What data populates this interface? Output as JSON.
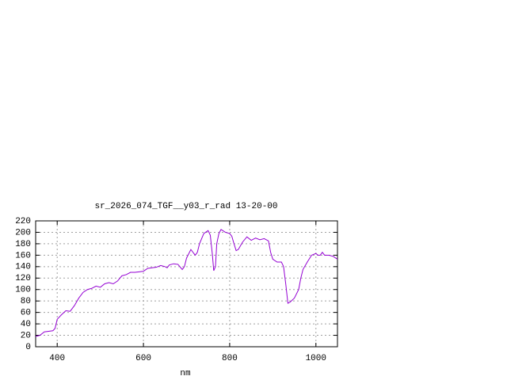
{
  "chart_data": {
    "type": "line",
    "title": "sr_2026_074_TGF__y03_r_rad 13-20-00",
    "x_label": "nm",
    "x": [
      350,
      360,
      370,
      380,
      390,
      395,
      400,
      410,
      420,
      430,
      440,
      450,
      460,
      470,
      480,
      490,
      500,
      510,
      520,
      530,
      540,
      550,
      560,
      570,
      580,
      590,
      600,
      610,
      620,
      630,
      640,
      650,
      655,
      660,
      670,
      680,
      690,
      695,
      700,
      710,
      715,
      720,
      725,
      730,
      740,
      750,
      755,
      760,
      763,
      767,
      770,
      775,
      780,
      790,
      800,
      805,
      810,
      815,
      820,
      830,
      840,
      850,
      860,
      870,
      880,
      890,
      895,
      900,
      910,
      920,
      925,
      930,
      935,
      940,
      950,
      960,
      965,
      970,
      980,
      990,
      1000,
      1005,
      1010,
      1015,
      1020,
      1030,
      1040,
      1050
    ],
    "series": [
      {
        "name": null,
        "color": "#9400d3",
        "values": [
          18,
          20,
          26,
          27,
          28,
          32,
          48,
          56,
          63,
          62,
          72,
          85,
          95,
          100,
          102,
          106,
          104,
          110,
          112,
          110,
          115,
          124,
          126,
          130,
          130,
          131,
          132,
          137,
          138,
          139,
          142,
          140,
          138,
          143,
          145,
          144,
          135,
          140,
          155,
          170,
          165,
          160,
          165,
          180,
          198,
          203,
          195,
          160,
          133,
          140,
          180,
          198,
          205,
          200,
          198,
          193,
          180,
          168,
          170,
          183,
          192,
          186,
          190,
          187,
          189,
          185,
          165,
          153,
          148,
          148,
          140,
          110,
          76,
          78,
          85,
          100,
          120,
          135,
          148,
          160,
          163,
          160,
          160,
          165,
          160,
          160,
          158,
          153
        ]
      }
    ],
    "xlim": [
      350,
      1050
    ],
    "xticks": [
      400,
      600,
      800,
      1000
    ],
    "ylim": [
      0,
      220
    ],
    "yticks": [
      0,
      20,
      40,
      60,
      80,
      100,
      120,
      140,
      160,
      180,
      200,
      220
    ],
    "grid": true
  }
}
